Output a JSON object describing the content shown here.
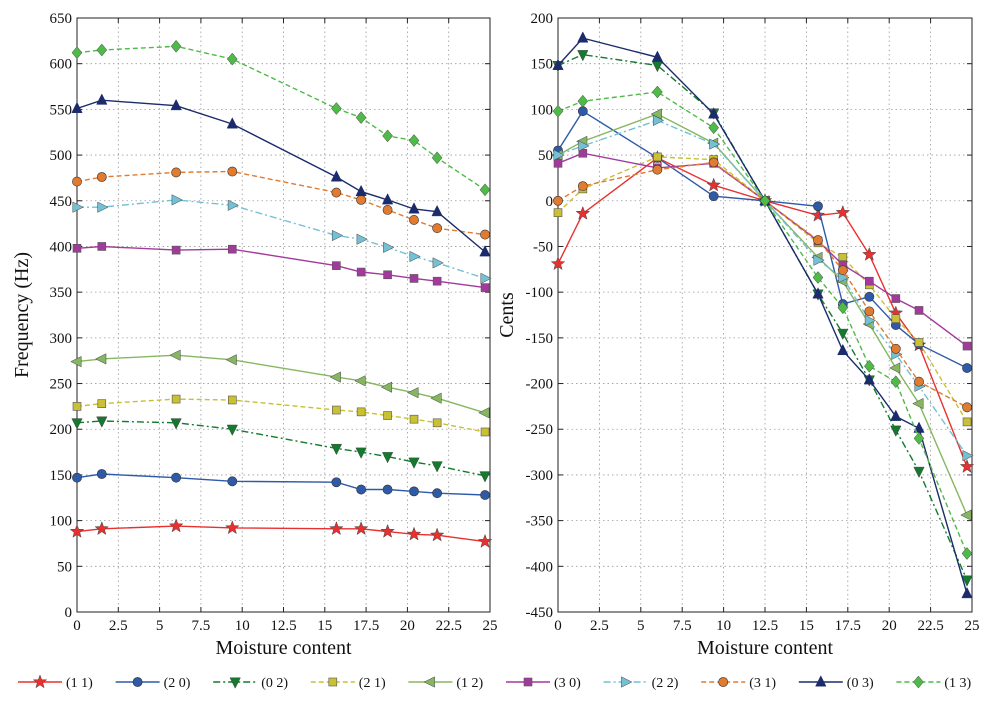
{
  "chart_data": [
    {
      "type": "line",
      "xlabel": "Moisture content",
      "ylabel": "Frequency (Hz)",
      "xlim": [
        0,
        25
      ],
      "ylim": [
        0,
        650
      ],
      "xticks": [
        "0",
        "2.5",
        "5",
        "7.5",
        "10",
        "12.5",
        "15",
        "17.5",
        "20",
        "22.5",
        "25"
      ],
      "yticks": [
        "0",
        "50",
        "100",
        "150",
        "200",
        "250",
        "300",
        "350",
        "400",
        "450",
        "500",
        "550",
        "600",
        "650"
      ],
      "x": [
        0,
        1.5,
        6,
        9.4,
        15.7,
        17.2,
        18.8,
        20.4,
        21.8,
        24.7
      ],
      "grid": true,
      "series": [
        {
          "name": "(1 1)",
          "values": [
            88,
            91,
            94,
            92,
            91,
            91,
            88,
            85,
            84,
            77
          ]
        },
        {
          "name": "(2 0)",
          "values": [
            147,
            151,
            147,
            143,
            142,
            134,
            134,
            132,
            130,
            128
          ]
        },
        {
          "name": "(0 2)",
          "values": [
            207,
            209,
            207,
            200,
            179,
            175,
            170,
            164,
            160,
            149
          ]
        },
        {
          "name": "(2 1)",
          "values": [
            225,
            228,
            233,
            232,
            221,
            219,
            215,
            211,
            207,
            197
          ]
        },
        {
          "name": "(1 2)",
          "values": [
            274,
            277,
            281,
            276,
            257,
            253,
            246,
            240,
            234,
            218
          ]
        },
        {
          "name": "(3 0)",
          "values": [
            398,
            400,
            396,
            397,
            379,
            372,
            369,
            365,
            362,
            355
          ]
        },
        {
          "name": "(2 2)",
          "values": [
            443,
            443,
            451,
            445,
            412,
            408,
            399,
            389,
            382,
            365
          ]
        },
        {
          "name": "(3 1)",
          "values": [
            471,
            476,
            481,
            482,
            459,
            451,
            440,
            429,
            420,
            413
          ]
        },
        {
          "name": "(0 3)",
          "values": [
            551,
            560,
            554,
            534,
            476,
            460,
            451,
            441,
            438,
            394
          ]
        },
        {
          "name": "(1 3)",
          "values": [
            612,
            615,
            619,
            605,
            551,
            541,
            521,
            516,
            497,
            462
          ]
        }
      ]
    },
    {
      "type": "line",
      "xlabel": "Moisture content",
      "ylabel": "Cents",
      "xlim": [
        0,
        25
      ],
      "ylim": [
        -450,
        200
      ],
      "xticks": [
        "0",
        "2.5",
        "5",
        "7.5",
        "10",
        "12.5",
        "15",
        "17.5",
        "20",
        "22.5",
        "25"
      ],
      "yticks": [
        "-450",
        "-400",
        "-350",
        "-300",
        "-250",
        "-200",
        "-150",
        "-100",
        "-50",
        "0",
        "50",
        "100",
        "150",
        "200"
      ],
      "x": [
        0,
        1.5,
        6,
        9.4,
        12.5,
        15.7,
        17.2,
        18.8,
        20.4,
        21.8,
        24.7
      ],
      "grid": true,
      "series": [
        {
          "name": "(1 1)",
          "values": [
            -69,
            -14,
            47,
            17,
            0,
            -16,
            -13,
            -59,
            -123,
            -158,
            -291
          ]
        },
        {
          "name": "(2 0)",
          "values": [
            55,
            98,
            47,
            5,
            0,
            -6,
            -113,
            -105,
            -136,
            -157,
            -183
          ]
        },
        {
          "name": "(0 2)",
          "values": [
            148,
            160,
            148,
            96,
            0,
            -102,
            -145,
            -196,
            -251,
            -296,
            -415
          ]
        },
        {
          "name": "(2 1)",
          "values": [
            -13,
            13,
            48,
            45,
            0,
            -46,
            -62,
            -92,
            -129,
            -155,
            -242
          ]
        },
        {
          "name": "(1 2)",
          "values": [
            50,
            65,
            95,
            63,
            0,
            -62,
            -88,
            -135,
            -183,
            -222,
            -344
          ]
        },
        {
          "name": "(3 0)",
          "values": [
            41,
            52,
            36,
            41,
            0,
            -44,
            -70,
            -88,
            -107,
            -120,
            -159
          ]
        },
        {
          "name": "(2 2)",
          "values": [
            50,
            60,
            88,
            62,
            0,
            -65,
            -84,
            -131,
            -168,
            -203,
            -279
          ]
        },
        {
          "name": "(3 1)",
          "values": [
            0,
            16,
            34,
            42,
            0,
            -43,
            -76,
            -121,
            -162,
            -198,
            -226
          ]
        },
        {
          "name": "(0 3)",
          "values": [
            148,
            178,
            157,
            95,
            0,
            -102,
            -164,
            -196,
            -236,
            -249,
            -430
          ]
        },
        {
          "name": "(1 3)",
          "values": [
            98,
            109,
            119,
            80,
            0,
            -84,
            -117,
            -181,
            -198,
            -260,
            -386
          ]
        }
      ]
    }
  ],
  "legend": [
    {
      "label": "(1 1)",
      "color": "#e8302f",
      "marker": "star",
      "dash": "solid"
    },
    {
      "label": "(2 0)",
      "color": "#2f5aa8",
      "marker": "circle",
      "dash": "solid"
    },
    {
      "label": "(0 2)",
      "color": "#137a2e",
      "marker": "triangle-down",
      "dash": "dashdot"
    },
    {
      "label": "(2 1)",
      "color": "#c9c034",
      "marker": "square",
      "dash": "dashed"
    },
    {
      "label": "(1 2)",
      "color": "#86b760",
      "marker": "triangle-left",
      "dash": "solid"
    },
    {
      "label": "(3 0)",
      "color": "#a23a9c",
      "marker": "square",
      "dash": "solid"
    },
    {
      "label": "(2 2)",
      "color": "#74c0d4",
      "marker": "triangle-right",
      "dash": "dashdot"
    },
    {
      "label": "(3 1)",
      "color": "#e07b2f",
      "marker": "circle",
      "dash": "dashed"
    },
    {
      "label": "(0 3)",
      "color": "#1b2b6b",
      "marker": "triangle-up",
      "dash": "solid"
    },
    {
      "label": "(1 3)",
      "color": "#4fba48",
      "marker": "diamond",
      "dash": "dashed"
    }
  ]
}
